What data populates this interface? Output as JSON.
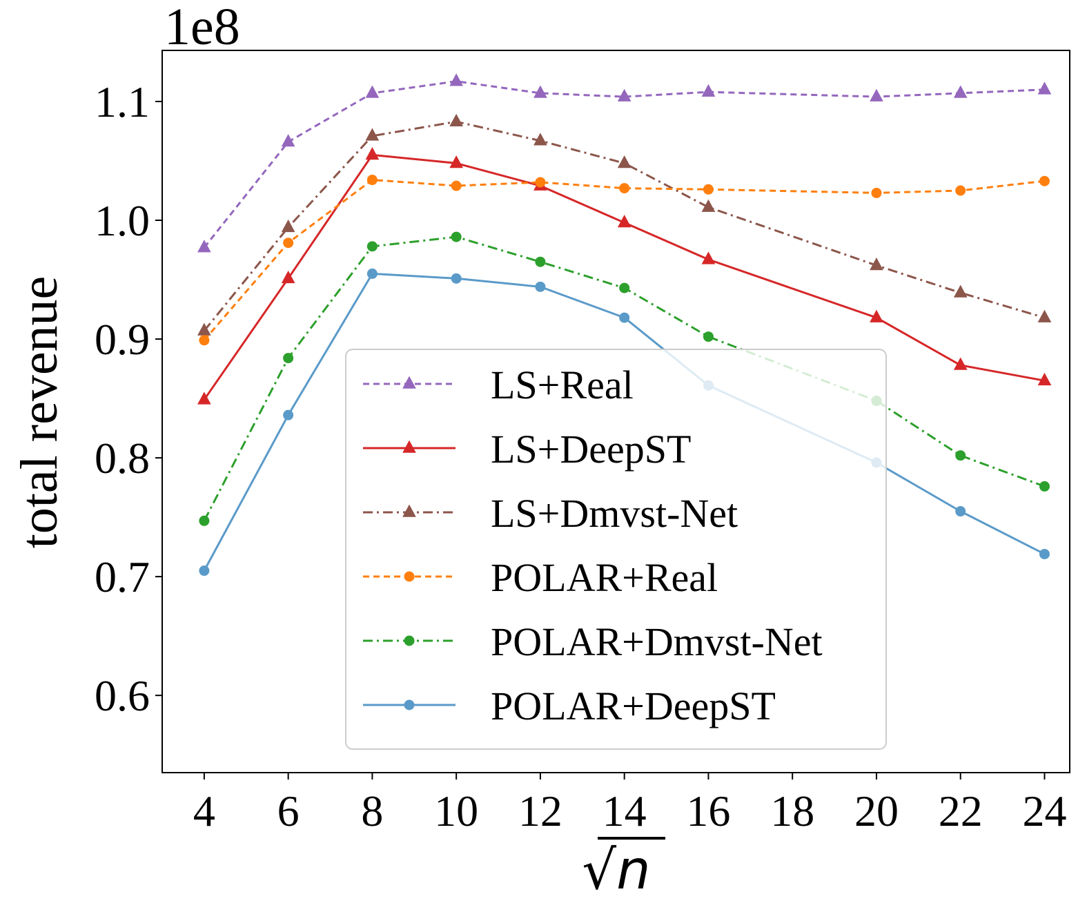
{
  "chart_data": {
    "type": "line",
    "title": "",
    "xlabel": "√n",
    "xlabel_radical": "√",
    "xlabel_var": "n",
    "ylabel": "total revenue",
    "y_scale_label": "1e8",
    "x_ticks": [
      4,
      6,
      8,
      10,
      12,
      14,
      16,
      18,
      20,
      22,
      24
    ],
    "y_ticks": [
      0.6,
      0.7,
      0.8,
      0.9,
      1.0,
      1.1
    ],
    "y_tick_labels": [
      "0.6",
      "0.7",
      "0.8",
      "0.9",
      "1.0",
      "1.1"
    ],
    "xlim": [
      3.0,
      24.6
    ],
    "ylim": [
      0.535,
      1.143
    ],
    "grid": false,
    "legend_position": "center",
    "x": [
      4,
      6,
      8,
      10,
      12,
      14,
      16,
      20,
      22,
      24
    ],
    "series": [
      {
        "name": "LS+Real",
        "color": "#9467bd",
        "dash": "dashed",
        "marker": "triangle",
        "values": [
          0.977,
          1.066,
          1.107,
          1.117,
          1.107,
          1.104,
          1.108,
          1.104,
          1.107,
          1.11
        ]
      },
      {
        "name": "LS+DeepST",
        "color": "#d62728",
        "dash": "solid",
        "marker": "triangle",
        "values": [
          0.849,
          0.951,
          1.055,
          1.048,
          1.029,
          0.998,
          0.967,
          0.918,
          0.878,
          0.865
        ]
      },
      {
        "name": "LS+Dmvst-Net",
        "color": "#8c564b",
        "dash": "dashdot",
        "marker": "triangle",
        "values": [
          0.907,
          0.994,
          1.071,
          1.083,
          1.067,
          1.048,
          1.011,
          0.962,
          0.939,
          0.918
        ]
      },
      {
        "name": "POLAR+Real",
        "color": "#ff7f0e",
        "dash": "dashed",
        "marker": "circle",
        "values": [
          0.899,
          0.981,
          1.034,
          1.029,
          1.032,
          1.027,
          1.026,
          1.023,
          1.025,
          1.033
        ]
      },
      {
        "name": "POLAR+Dmvst-Net",
        "color": "#2ca02c",
        "dash": "dashdot",
        "marker": "circle",
        "values": [
          0.747,
          0.884,
          0.978,
          0.986,
          0.965,
          0.943,
          0.902,
          0.848,
          0.802,
          0.776
        ]
      },
      {
        "name": "POLAR+DeepST",
        "color": "#5a9ac9",
        "dash": "solid",
        "marker": "circle",
        "values": [
          0.705,
          0.836,
          0.955,
          0.951,
          0.944,
          0.918,
          0.861,
          0.796,
          0.755,
          0.719
        ]
      }
    ]
  }
}
